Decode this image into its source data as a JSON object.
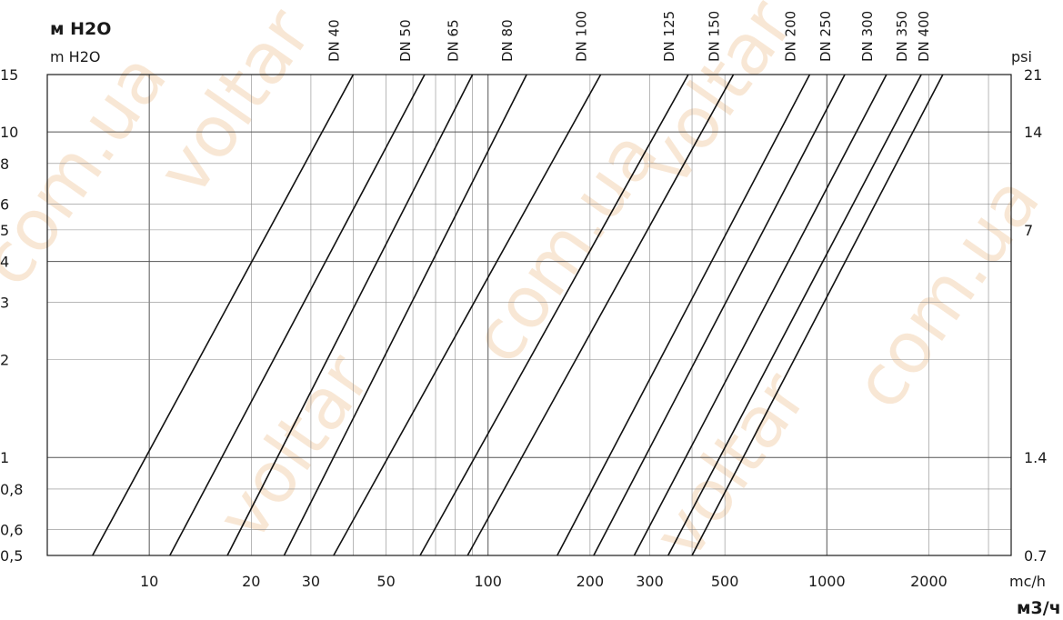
{
  "chart_data": {
    "type": "line",
    "scale": "log-log",
    "y_title_ru": "м H2O",
    "y_title": "m H2O",
    "y_right_title": "psi",
    "x_title": "mc/h",
    "x_title_ru": "м3/ч",
    "xlim": [
      5,
      3500
    ],
    "ylim": [
      0.5,
      15
    ],
    "x_ticks": [
      {
        "value": 10,
        "label": "10"
      },
      {
        "value": 20,
        "label": "20"
      },
      {
        "value": 30,
        "label": "30"
      },
      {
        "value": 50,
        "label": "50"
      },
      {
        "value": 100,
        "label": "100"
      },
      {
        "value": 200,
        "label": "200"
      },
      {
        "value": 300,
        "label": "300"
      },
      {
        "value": 500,
        "label": "500"
      },
      {
        "value": 1000,
        "label": "1000"
      },
      {
        "value": 2000,
        "label": "2000"
      }
    ],
    "y_ticks": [
      {
        "value": 0.5,
        "label": "0,5"
      },
      {
        "value": 0.6,
        "label": "0,6"
      },
      {
        "value": 0.8,
        "label": "0,8"
      },
      {
        "value": 1,
        "label": "1"
      },
      {
        "value": 2,
        "label": "2"
      },
      {
        "value": 3,
        "label": "3"
      },
      {
        "value": 4,
        "label": "4"
      },
      {
        "value": 5,
        "label": "5"
      },
      {
        "value": 6,
        "label": "6"
      },
      {
        "value": 8,
        "label": "8"
      },
      {
        "value": 10,
        "label": "10"
      },
      {
        "value": 15,
        "label": "15"
      }
    ],
    "y_right_ticks": [
      {
        "value": 0.5,
        "label": "0.7"
      },
      {
        "value": 1,
        "label": "1.4"
      },
      {
        "value": 5,
        "label": "7"
      },
      {
        "value": 10,
        "label": "14"
      },
      {
        "value": 15,
        "label": "21"
      }
    ],
    "x_grid": [
      10,
      20,
      30,
      40,
      50,
      60,
      70,
      80,
      90,
      100,
      200,
      300,
      400,
      500,
      1000,
      2000,
      3000
    ],
    "y_grid": [
      0.6,
      0.8,
      1,
      2,
      3,
      4,
      5,
      6,
      8,
      10
    ],
    "series": [
      {
        "name": "DN 40",
        "points": [
          [
            6.8,
            0.5
          ],
          [
            40,
            15
          ]
        ]
      },
      {
        "name": "DN 50",
        "points": [
          [
            11.5,
            0.5
          ],
          [
            65,
            15
          ]
        ]
      },
      {
        "name": "DN 65",
        "points": [
          [
            17,
            0.5
          ],
          [
            90,
            15
          ]
        ]
      },
      {
        "name": "DN 80",
        "points": [
          [
            25,
            0.5
          ],
          [
            130,
            15
          ]
        ]
      },
      {
        "name": "DN 100",
        "points": [
          [
            35,
            0.5
          ],
          [
            215,
            15
          ]
        ]
      },
      {
        "name": "DN 125",
        "points": [
          [
            63,
            0.5
          ],
          [
            390,
            15
          ]
        ]
      },
      {
        "name": "DN 150",
        "points": [
          [
            87,
            0.5
          ],
          [
            530,
            15
          ]
        ]
      },
      {
        "name": "DN 200",
        "points": [
          [
            160,
            0.5
          ],
          [
            890,
            15
          ]
        ]
      },
      {
        "name": "DN 250",
        "points": [
          [
            205,
            0.5
          ],
          [
            1130,
            15
          ]
        ]
      },
      {
        "name": "DN 300",
        "points": [
          [
            270,
            0.5
          ],
          [
            1500,
            15
          ]
        ]
      },
      {
        "name": "DN 350",
        "points": [
          [
            340,
            0.5
          ],
          [
            1900,
            15
          ]
        ]
      },
      {
        "name": "DN 400",
        "points": [
          [
            400,
            0.5
          ],
          [
            2200,
            15
          ]
        ]
      }
    ],
    "grid": true,
    "legend": "none"
  }
}
